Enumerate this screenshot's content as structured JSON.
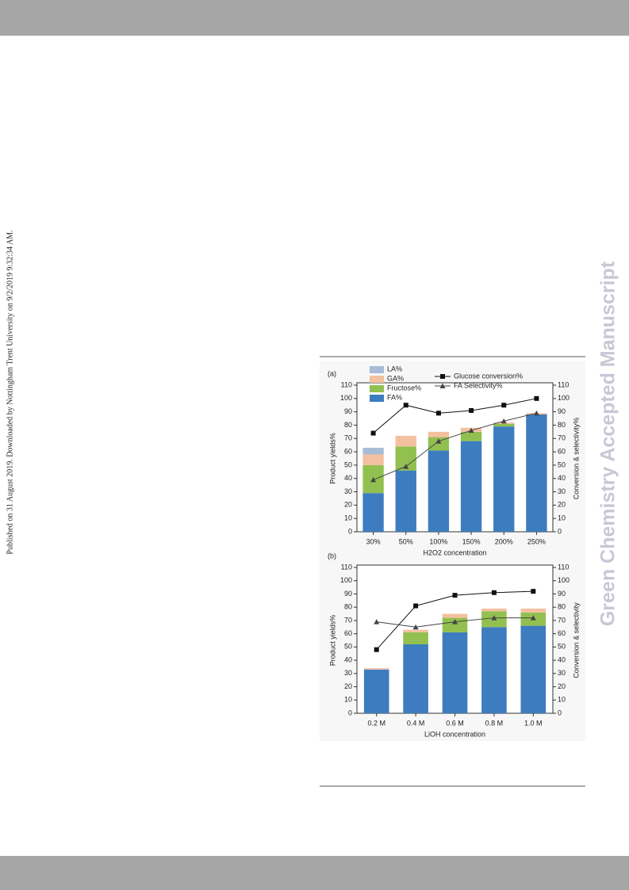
{
  "side_note": "Published on 31 August 2019. Downloaded by Nottingham Trent University on 9/2/2019 9:32:34 AM.",
  "watermark": "Green Chemistry Accepted Manuscript",
  "chart_data": [
    {
      "type": "bar",
      "stacked": true,
      "panel": "(a)",
      "categories": [
        "30%",
        "50%",
        "100%",
        "150%",
        "200%",
        "250%"
      ],
      "series": [
        {
          "name": "FA%",
          "color": "#3d7cbf",
          "values": [
            29,
            46,
            61,
            68,
            79,
            88
          ]
        },
        {
          "name": "Fructose%",
          "color": "#92c050",
          "values": [
            21,
            18,
            10,
            7,
            2,
            0
          ]
        },
        {
          "name": "GA%",
          "color": "#f3c0a0",
          "values": [
            8,
            8,
            4,
            3,
            1,
            1
          ]
        },
        {
          "name": "LA%",
          "color": "#a7bcd6",
          "values": [
            5,
            0,
            0,
            0,
            0,
            0
          ]
        },
        {
          "name": "Glucose conversion%",
          "color": "#111111",
          "type": "line",
          "marker": "square",
          "axis": "y2",
          "values": [
            74,
            95,
            89,
            91,
            95,
            100
          ]
        },
        {
          "name": "FA Selectivity%",
          "color": "#444444",
          "type": "line",
          "marker": "triangle",
          "axis": "y2",
          "values": [
            39,
            49,
            68,
            76,
            83,
            89
          ]
        }
      ],
      "xlabel": "H2O2 concentration",
      "ylabel": "Product yields%",
      "y2label": "Conversion & selectivity%",
      "ylim": [
        0,
        110
      ],
      "yticks": [
        0,
        10,
        20,
        30,
        40,
        50,
        60,
        70,
        80,
        90,
        100,
        110
      ],
      "y2lim": [
        0,
        110
      ],
      "y2ticks": [
        0,
        10,
        20,
        30,
        40,
        50,
        60,
        70,
        80,
        90,
        100,
        110
      ],
      "legend": true
    },
    {
      "type": "bar",
      "stacked": true,
      "panel": "(b)",
      "categories": [
        "0.2 M",
        "0.4 M",
        "0.6 M",
        "0.8 M",
        "1.0 M"
      ],
      "series": [
        {
          "color": "#3d7cbf",
          "values": [
            33,
            52,
            61,
            65,
            66
          ]
        },
        {
          "color": "#92c050",
          "values": [
            0,
            9,
            11,
            12,
            10
          ]
        },
        {
          "color": "#f3c0a0",
          "values": [
            1,
            2,
            3,
            2,
            3
          ]
        },
        {
          "color": "#111111",
          "type": "line",
          "marker": "square",
          "axis": "y2",
          "values": [
            48,
            81,
            89,
            91,
            92
          ]
        },
        {
          "color": "#444444",
          "type": "line",
          "marker": "triangle",
          "axis": "y2",
          "values": [
            69,
            65,
            69,
            72,
            72
          ]
        }
      ],
      "xlabel": "LiOH concentration",
      "ylabel": "Product yields%",
      "y2label": "Conversion & selectivity",
      "ylim": [
        0,
        110
      ],
      "yticks": [
        0,
        10,
        20,
        30,
        40,
        50,
        60,
        70,
        80,
        90,
        100,
        110
      ],
      "y2lim": [
        0,
        110
      ],
      "y2ticks": [
        0,
        10,
        20,
        30,
        40,
        50,
        60,
        70,
        80,
        90,
        100,
        110
      ],
      "legend": false
    }
  ]
}
